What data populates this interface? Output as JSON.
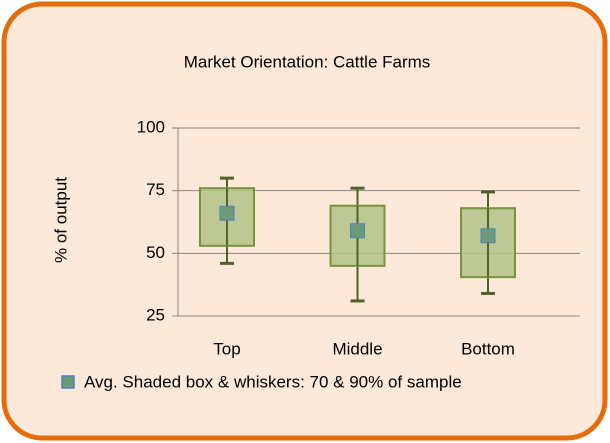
{
  "chart_data": {
    "type": "box",
    "title": "Market Orientation: Cattle Farms",
    "y_label": "% of output",
    "categories": [
      "Top",
      "Middle",
      "Bottom"
    ],
    "boxes": [
      {
        "whisker_low": 46,
        "box_low": 53,
        "mean": 66,
        "box_high": 76,
        "whisker_high": 80
      },
      {
        "whisker_low": 31,
        "box_low": 45,
        "mean": 59,
        "box_high": 69,
        "whisker_high": 76
      },
      {
        "whisker_low": 34,
        "box_low": 40.5,
        "mean": 57,
        "box_high": 68,
        "whisker_high": 74.5
      }
    ],
    "legend": "Avg. Shaded box & whiskers: 70 & 90% of sample",
    "box_color": "#b3c287",
    "mean_color": "#6b9a7a",
    "whisker_color": "#4f6228",
    "ylim": [
      25,
      100
    ],
    "yticks": [
      25,
      50,
      75,
      100
    ],
    "grid": true
  }
}
